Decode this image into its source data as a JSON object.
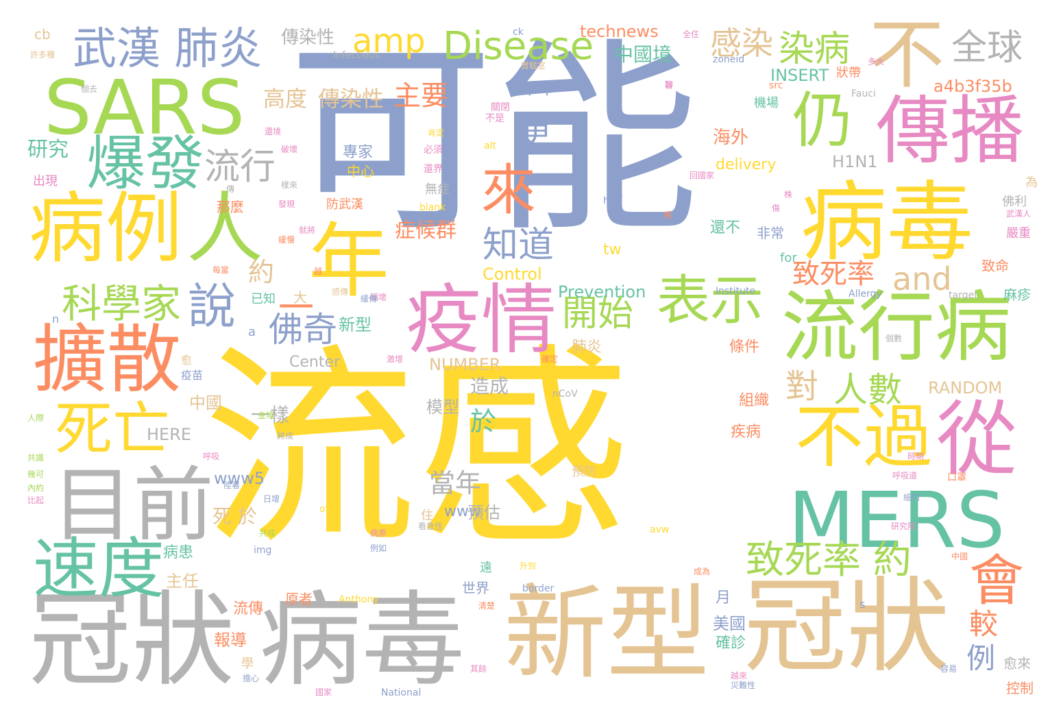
{
  "palette": {
    "blue": "#8da0cb",
    "yellow": "#ffd92f",
    "gray": "#b3b3b3",
    "tan": "#e5c494",
    "green": "#a6d854",
    "teal": "#66c2a5",
    "orange": "#fc8d62",
    "pink": "#e78ac3"
  },
  "words": [
    {
      "text": "可能",
      "color": "blue"
    },
    {
      "text": "流感",
      "color": "yellow"
    },
    {
      "text": "冠狀",
      "color": "gray"
    },
    {
      "text": "病毒",
      "color": "gray"
    },
    {
      "text": "新型",
      "color": "tan"
    },
    {
      "text": "冠狀",
      "color": "tan"
    },
    {
      "text": "病例",
      "color": "yellow"
    },
    {
      "text": "人",
      "color": "green"
    },
    {
      "text": "SARS",
      "color": "green"
    },
    {
      "text": "病毒",
      "color": "yellow"
    },
    {
      "text": "MERS",
      "color": "teal"
    },
    {
      "text": "流行病",
      "color": "green"
    },
    {
      "text": "擴散",
      "color": "orange"
    },
    {
      "text": "目前",
      "color": "gray"
    },
    {
      "text": "疫情",
      "color": "pink"
    },
    {
      "text": "傳播",
      "color": "pink"
    },
    {
      "text": "年",
      "color": "yellow"
    },
    {
      "text": "從",
      "color": "pink"
    },
    {
      "text": "不過",
      "color": "yellow"
    },
    {
      "text": "不",
      "color": "tan"
    },
    {
      "text": "速度",
      "color": "teal"
    },
    {
      "text": "爆發",
      "color": "teal"
    },
    {
      "text": "表示",
      "color": "green"
    },
    {
      "text": "死亡",
      "color": "yellow"
    },
    {
      "text": "仍",
      "color": "green"
    },
    {
      "text": "會",
      "color": "orange"
    },
    {
      "text": "來",
      "color": "orange"
    },
    {
      "text": "武漢 肺炎",
      "color": "blue"
    },
    {
      "text": "說",
      "color": "blue"
    },
    {
      "text": "科學家",
      "color": "green"
    },
    {
      "text": "Disease",
      "color": "green"
    },
    {
      "text": "致死率 約",
      "color": "green"
    },
    {
      "text": "開始",
      "color": "green"
    },
    {
      "text": "佛奇",
      "color": "blue"
    },
    {
      "text": "知道",
      "color": "blue"
    },
    {
      "text": "流行",
      "color": "gray"
    },
    {
      "text": "amp",
      "color": "yellow"
    },
    {
      "text": "全球",
      "color": "gray"
    },
    {
      "text": "染病",
      "color": "green"
    },
    {
      "text": "人數",
      "color": "green"
    },
    {
      "text": "and",
      "color": "tan"
    },
    {
      "text": "對",
      "color": "tan"
    },
    {
      "text": "感染",
      "color": "tan"
    },
    {
      "text": "一",
      "color": "orange"
    },
    {
      "text": "更",
      "color": "blue"
    },
    {
      "text": "約",
      "color": "tan"
    },
    {
      "text": "主要",
      "color": "orange"
    },
    {
      "text": "高度",
      "color": "tan"
    },
    {
      "text": "傳染性",
      "color": "tan"
    },
    {
      "text": "致死率",
      "color": "orange"
    },
    {
      "text": "較",
      "color": "orange"
    },
    {
      "text": "例",
      "color": "blue"
    },
    {
      "text": "研究",
      "color": "teal"
    },
    {
      "text": "當年",
      "color": "gray"
    },
    {
      "text": "於",
      "color": "teal"
    },
    {
      "text": "症候群",
      "color": "orange"
    },
    {
      "text": "中國境",
      "color": "teal"
    },
    {
      "text": "technews",
      "color": "orange"
    },
    {
      "text": "傳染性",
      "color": "gray"
    },
    {
      "text": "a4b3f35b",
      "color": "orange"
    },
    {
      "text": "INSERT",
      "color": "teal"
    },
    {
      "text": "海外",
      "color": "orange"
    },
    {
      "text": "H1N1",
      "color": "gray"
    },
    {
      "text": "delivery",
      "color": "yellow"
    },
    {
      "text": "Prevention",
      "color": "teal"
    },
    {
      "text": "Control",
      "color": "yellow"
    },
    {
      "text": "NUMBER",
      "color": "tan"
    },
    {
      "text": "RANDOM",
      "color": "tan"
    },
    {
      "text": "HERE",
      "color": "gray"
    },
    {
      "text": "Center",
      "color": "gray"
    },
    {
      "text": "www5",
      "color": "blue"
    },
    {
      "text": "www",
      "color": "blue"
    },
    {
      "text": "一樣",
      "color": "gray"
    },
    {
      "text": "中國",
      "color": "tan"
    },
    {
      "text": "模型",
      "color": "gray"
    },
    {
      "text": "造成",
      "color": "gray"
    },
    {
      "text": "預估",
      "color": "gray"
    },
    {
      "text": "死 於",
      "color": "tan"
    },
    {
      "text": "新型",
      "color": "teal"
    },
    {
      "text": "肺炎",
      "color": "tan"
    },
    {
      "text": "條件",
      "color": "orange"
    },
    {
      "text": "組織",
      "color": "orange"
    },
    {
      "text": "疾病",
      "color": "orange"
    },
    {
      "text": "美國",
      "color": "blue"
    },
    {
      "text": "確診",
      "color": "teal"
    },
    {
      "text": "報導",
      "color": "orange"
    },
    {
      "text": "流傳",
      "color": "orange"
    },
    {
      "text": "病患",
      "color": "teal"
    },
    {
      "text": "主任",
      "color": "tan"
    },
    {
      "text": "原者",
      "color": "orange"
    },
    {
      "text": "世界",
      "color": "blue"
    },
    {
      "text": "月",
      "color": "blue"
    },
    {
      "text": "專家",
      "color": "blue"
    },
    {
      "text": "中心",
      "color": "yellow"
    },
    {
      "text": "非常",
      "color": "blue"
    },
    {
      "text": "還不",
      "color": "teal"
    },
    {
      "text": "php",
      "color": "blue"
    },
    {
      "text": "tw",
      "color": "yellow"
    },
    {
      "text": "for",
      "color": "teal"
    },
    {
      "text": "那麼",
      "color": "orange"
    },
    {
      "text": "防武漢",
      "color": "orange"
    },
    {
      "text": "無症",
      "color": "gray"
    },
    {
      "text": "已知",
      "color": "teal"
    },
    {
      "text": "大",
      "color": "tan"
    },
    {
      "text": "出現",
      "color": "pink"
    },
    {
      "text": "麻疹",
      "color": "teal"
    },
    {
      "text": "致命",
      "color": "orange"
    },
    {
      "text": "嚴重",
      "color": "pink"
    },
    {
      "text": "佛利",
      "color": "gray"
    },
    {
      "text": "為",
      "color": "tan"
    },
    {
      "text": "愈來",
      "color": "gray"
    },
    {
      "text": "控制",
      "color": "orange"
    },
    {
      "text": "cb",
      "color": "tan"
    },
    {
      "text": "ck",
      "color": "blue"
    },
    {
      "text": "Infectious",
      "color": "gray"
    },
    {
      "text": "Anthony",
      "color": "yellow"
    },
    {
      "text": "National",
      "color": "blue"
    },
    {
      "text": "border",
      "color": "blue"
    },
    {
      "text": "img",
      "color": "blue"
    },
    {
      "text": "of",
      "color": "yellow"
    },
    {
      "text": "a",
      "color": "blue"
    },
    {
      "text": "n",
      "color": "blue"
    },
    {
      "text": "href",
      "color": "blue"
    },
    {
      "text": "blank",
      "color": "yellow"
    },
    {
      "text": "alt",
      "color": "yellow"
    },
    {
      "text": "src",
      "color": "orange"
    },
    {
      "text": "zoneid",
      "color": "blue"
    },
    {
      "text": "Fauci",
      "color": "gray"
    },
    {
      "text": "Institute",
      "color": "blue"
    },
    {
      "text": "Allergy",
      "color": "blue"
    },
    {
      "text": "target",
      "color": "gray"
    },
    {
      "text": "nCoV",
      "color": "gray"
    },
    {
      "text": "avw",
      "color": "yellow"
    },
    {
      "text": "s",
      "color": "blue"
    },
    {
      "text": "預防",
      "color": "tan"
    },
    {
      "text": "住",
      "color": "tan"
    },
    {
      "text": "學",
      "color": "tan"
    },
    {
      "text": "遠",
      "color": "teal"
    },
    {
      "text": "狀帶",
      "color": "orange"
    },
    {
      "text": "機場",
      "color": "teal"
    },
    {
      "text": "關閉",
      "color": "pink"
    },
    {
      "text": "不是",
      "color": "pink"
    },
    {
      "text": "必須",
      "color": "pink"
    },
    {
      "text": "還界",
      "color": "pink"
    },
    {
      "text": "實驗室",
      "color": "tan"
    },
    {
      "text": "多大",
      "color": "pink"
    },
    {
      "text": "許多種",
      "color": "tan"
    },
    {
      "text": "全住",
      "color": "pink"
    },
    {
      "text": "武漢人",
      "color": "pink"
    },
    {
      "text": "口罩",
      "color": "orange"
    },
    {
      "text": "研究院",
      "color": "pink"
    },
    {
      "text": "病原",
      "color": "pink"
    },
    {
      "text": "例如",
      "color": "blue"
    },
    {
      "text": "比起",
      "color": "pink"
    },
    {
      "text": "共識",
      "color": "green"
    },
    {
      "text": "幾可",
      "color": "green"
    },
    {
      "text": "內約",
      "color": "green"
    },
    {
      "text": "人際",
      "color": "green"
    },
    {
      "text": "愈",
      "color": "tan"
    },
    {
      "text": "疫苗",
      "color": "blue"
    },
    {
      "text": "國家",
      "color": "pink"
    },
    {
      "text": "災難性",
      "color": "blue"
    },
    {
      "text": "其餘",
      "color": "pink"
    },
    {
      "text": "成為",
      "color": "orange"
    },
    {
      "text": "容易",
      "color": "blue"
    },
    {
      "text": "共成",
      "color": "green"
    },
    {
      "text": "細約",
      "color": "blue"
    },
    {
      "text": "確定",
      "color": "orange"
    },
    {
      "text": "每當",
      "color": "orange"
    },
    {
      "text": "越來",
      "color": "pink"
    },
    {
      "text": "擔心",
      "color": "blue"
    },
    {
      "text": "之間",
      "color": "yellow"
    },
    {
      "text": "呼吸",
      "color": "pink"
    },
    {
      "text": "呼吸道",
      "color": "pink"
    },
    {
      "text": "時期",
      "color": "pink"
    },
    {
      "text": "中國",
      "color": "orange"
    },
    {
      "text": "升到",
      "color": "yellow"
    },
    {
      "text": "傳",
      "color": "gray"
    },
    {
      "text": "發現",
      "color": "pink"
    },
    {
      "text": "回國家",
      "color": "pink"
    },
    {
      "text": "株",
      "color": "pink"
    },
    {
      "text": "嗎",
      "color": "orange"
    },
    {
      "text": "感傳",
      "color": "tan"
    },
    {
      "text": "傷",
      "color": "pink"
    },
    {
      "text": "隔壞",
      "color": "pink"
    },
    {
      "text": "個數",
      "color": "gray"
    },
    {
      "text": "越",
      "color": "orange"
    },
    {
      "text": "還境",
      "color": "pink"
    },
    {
      "text": "肯定",
      "color": "yellow"
    },
    {
      "text": "旨",
      "color": "pink"
    },
    {
      "text": "就將",
      "color": "pink"
    },
    {
      "text": "緩慢",
      "color": "orange"
    },
    {
      "text": "日增",
      "color": "blue"
    },
    {
      "text": "激增",
      "color": "pink"
    },
    {
      "text": "將成",
      "color": "gray"
    },
    {
      "text": "個去",
      "color": "gray"
    },
    {
      "text": "破壞",
      "color": "pink"
    },
    {
      "text": "緩傳",
      "color": "blue"
    },
    {
      "text": "樣來",
      "color": "gray"
    },
    {
      "text": "看急性",
      "color": "gray"
    },
    {
      "text": "清楚",
      "color": "orange"
    },
    {
      "text": "陸著",
      "color": "blue"
    },
    {
      "text": "聊",
      "color": "pink"
    },
    {
      "text": "金境",
      "color": "green"
    }
  ]
}
